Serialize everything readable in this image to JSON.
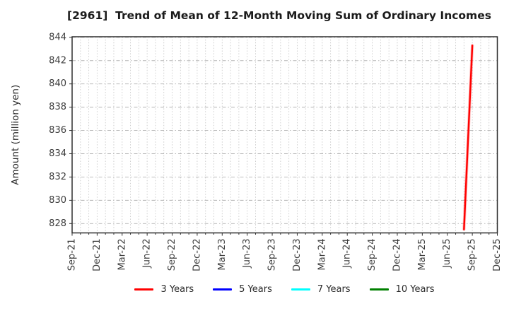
{
  "chart": {
    "title": "[2961]  Trend of Mean of 12-Month Moving Sum of Ordinary Incomes"
  },
  "chart_data": {
    "type": "line",
    "title": "[2961]  Trend of Mean of 12-Month Moving Sum of Ordinary Incomes",
    "xlabel": "",
    "ylabel": "Amount (million yen)",
    "x_tick_labels": [
      "Sep-21",
      "Dec-21",
      "Mar-22",
      "Jun-22",
      "Sep-22",
      "Dec-22",
      "Mar-23",
      "Jun-23",
      "Sep-23",
      "Dec-23",
      "Mar-24",
      "Jun-24",
      "Sep-24",
      "Dec-24",
      "Mar-25",
      "Jun-25",
      "Sep-25",
      "Dec-25"
    ],
    "x_tick_month_step": 3,
    "x_months_total": 51,
    "ylim": [
      827.2,
      844.05
    ],
    "yticks": [
      828,
      830,
      832,
      834,
      836,
      838,
      840,
      842,
      844
    ],
    "grid": {
      "horizontal": "dashed",
      "vertical": "monthly-dotted"
    },
    "legend_position": "bottom",
    "series": [
      {
        "name": "3 Years",
        "color": "#ff0000",
        "points": [
          {
            "month": 47,
            "label": "Aug-25",
            "value": 827.5
          },
          {
            "month": 48,
            "label": "Sep-25",
            "value": 843.3
          }
        ]
      },
      {
        "name": "5 Years",
        "color": "#0000ff",
        "points": []
      },
      {
        "name": "7 Years",
        "color": "#00ffff",
        "points": []
      },
      {
        "name": "10 Years",
        "color": "#008000",
        "points": []
      }
    ]
  },
  "colors": {
    "axis_border": "#2e2e2e",
    "grid_horizontal": "#b3b3b3",
    "grid_vertical": "#c9c9c9",
    "tick_label": "#3d3d3d",
    "axis_label": "#2a2a2a",
    "title": "#1b1b1b",
    "background": "#ffffff"
  }
}
